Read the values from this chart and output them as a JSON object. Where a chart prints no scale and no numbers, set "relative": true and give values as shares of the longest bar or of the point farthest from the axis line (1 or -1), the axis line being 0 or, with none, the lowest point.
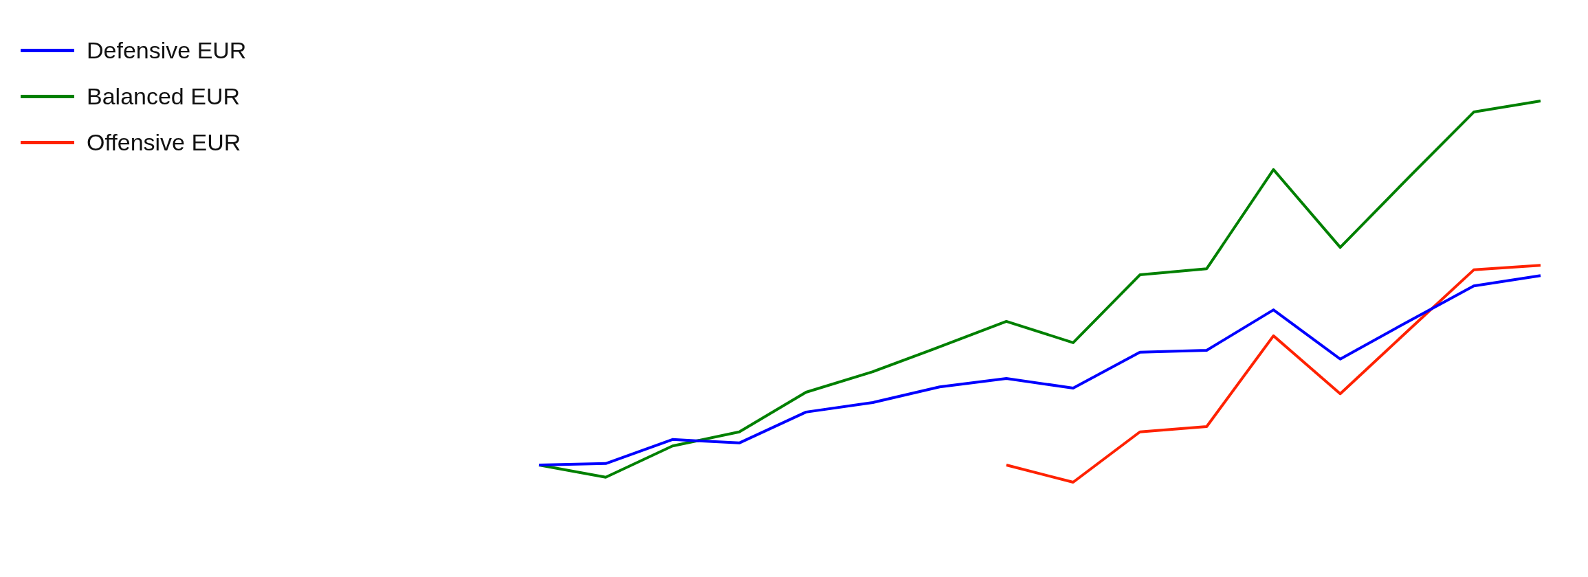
{
  "chart_data": {
    "type": "line",
    "relative": true,
    "legend": "top left",
    "marker": "none",
    "line_style": "solid",
    "categories": [
      null,
      null,
      null,
      null,
      null,
      null,
      null,
      null,
      null,
      null,
      null,
      null,
      null,
      null,
      null,
      null
    ],
    "series": [
      {
        "name": "Defensive EUR",
        "color": "#0000ff",
        "values": [
          0.045,
          0.049,
          0.112,
          0.103,
          0.184,
          0.209,
          0.25,
          0.272,
          0.247,
          0.341,
          0.346,
          0.452,
          0.323,
          0.42,
          0.515,
          0.542
        ]
      },
      {
        "name": "Balanced EUR",
        "color": "#008000",
        "values": [
          0.045,
          0.013,
          0.095,
          0.132,
          0.236,
          0.29,
          0.355,
          0.422,
          0.366,
          0.544,
          0.56,
          0.82,
          0.616,
          0.795,
          0.971,
          1
        ]
      },
      {
        "name": "Offensive EUR",
        "color": "#ff2200",
        "values": [
          null,
          null,
          null,
          null,
          null,
          null,
          null,
          0.045,
          0,
          0.132,
          0.146,
          0.384,
          0.232,
          0.395,
          0.557,
          0.569
        ]
      }
    ]
  }
}
